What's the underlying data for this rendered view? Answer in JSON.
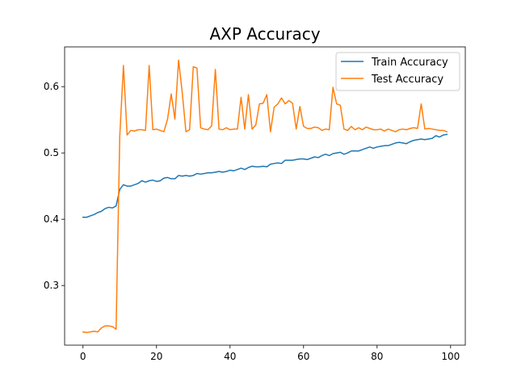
{
  "chart_data": {
    "type": "line",
    "title": "AXP Accuracy",
    "xlabel": "",
    "ylabel": "",
    "xlim": [
      -5,
      104
    ],
    "ylim": [
      0.21,
      0.66
    ],
    "xticks": [
      0,
      20,
      40,
      60,
      80,
      100
    ],
    "yticks": [
      0.3,
      0.4,
      0.5,
      0.6
    ],
    "xtick_labels": [
      "0",
      "20",
      "40",
      "60",
      "80",
      "100"
    ],
    "ytick_labels": [
      "0.3",
      "0.4",
      "0.5",
      "0.6"
    ],
    "grid": false,
    "legend_position": "top-right",
    "x": [
      0,
      1,
      2,
      3,
      4,
      5,
      6,
      7,
      8,
      9,
      10,
      11,
      12,
      13,
      14,
      15,
      16,
      17,
      18,
      19,
      20,
      21,
      22,
      23,
      24,
      25,
      26,
      27,
      28,
      29,
      30,
      31,
      32,
      33,
      34,
      35,
      36,
      37,
      38,
      39,
      40,
      41,
      42,
      43,
      44,
      45,
      46,
      47,
      48,
      49,
      50,
      51,
      52,
      53,
      54,
      55,
      56,
      57,
      58,
      59,
      60,
      61,
      62,
      63,
      64,
      65,
      66,
      67,
      68,
      69,
      70,
      71,
      72,
      73,
      74,
      75,
      76,
      77,
      78,
      79,
      80,
      81,
      82,
      83,
      84,
      85,
      86,
      87,
      88,
      89,
      90,
      91,
      92,
      93,
      94,
      95,
      96,
      97,
      98,
      99
    ],
    "series": [
      {
        "name": "Train Accuracy",
        "color": "#1f77b4",
        "values": [
          0.403,
          0.403,
          0.405,
          0.407,
          0.41,
          0.412,
          0.416,
          0.418,
          0.417,
          0.42,
          0.445,
          0.452,
          0.45,
          0.45,
          0.452,
          0.454,
          0.458,
          0.456,
          0.458,
          0.459,
          0.457,
          0.458,
          0.462,
          0.463,
          0.461,
          0.461,
          0.466,
          0.465,
          0.466,
          0.465,
          0.466,
          0.469,
          0.468,
          0.469,
          0.47,
          0.47,
          0.471,
          0.472,
          0.471,
          0.472,
          0.474,
          0.473,
          0.475,
          0.477,
          0.475,
          0.478,
          0.48,
          0.479,
          0.479,
          0.48,
          0.479,
          0.483,
          0.484,
          0.485,
          0.484,
          0.489,
          0.489,
          0.489,
          0.49,
          0.491,
          0.491,
          0.49,
          0.492,
          0.494,
          0.493,
          0.496,
          0.498,
          0.496,
          0.499,
          0.5,
          0.501,
          0.498,
          0.5,
          0.503,
          0.503,
          0.503,
          0.505,
          0.507,
          0.509,
          0.507,
          0.509,
          0.51,
          0.511,
          0.511,
          0.513,
          0.515,
          0.516,
          0.515,
          0.514,
          0.517,
          0.519,
          0.52,
          0.521,
          0.52,
          0.521,
          0.522,
          0.526,
          0.524,
          0.527,
          0.528
        ]
      },
      {
        "name": "Test Accuracy",
        "color": "#ff7f0e",
        "values": [
          0.23,
          0.229,
          0.23,
          0.231,
          0.23,
          0.236,
          0.239,
          0.239,
          0.238,
          0.234,
          0.525,
          0.632,
          0.527,
          0.534,
          0.533,
          0.535,
          0.535,
          0.534,
          0.632,
          0.535,
          0.536,
          0.534,
          0.532,
          0.551,
          0.589,
          0.551,
          0.64,
          0.591,
          0.532,
          0.535,
          0.63,
          0.628,
          0.538,
          0.536,
          0.535,
          0.541,
          0.626,
          0.536,
          0.535,
          0.538,
          0.535,
          0.536,
          0.536,
          0.584,
          0.536,
          0.588,
          0.536,
          0.542,
          0.574,
          0.575,
          0.588,
          0.532,
          0.569,
          0.574,
          0.583,
          0.574,
          0.579,
          0.575,
          0.536,
          0.57,
          0.54,
          0.537,
          0.537,
          0.539,
          0.538,
          0.534,
          0.536,
          0.535,
          0.599,
          0.574,
          0.572,
          0.536,
          0.534,
          0.54,
          0.535,
          0.538,
          0.535,
          0.539,
          0.537,
          0.535,
          0.535,
          0.536,
          0.533,
          0.536,
          0.534,
          0.532,
          0.535,
          0.536,
          0.535,
          0.537,
          0.538,
          0.537,
          0.574,
          0.536,
          0.537,
          0.536,
          0.535,
          0.534,
          0.534,
          0.532
        ]
      }
    ]
  }
}
